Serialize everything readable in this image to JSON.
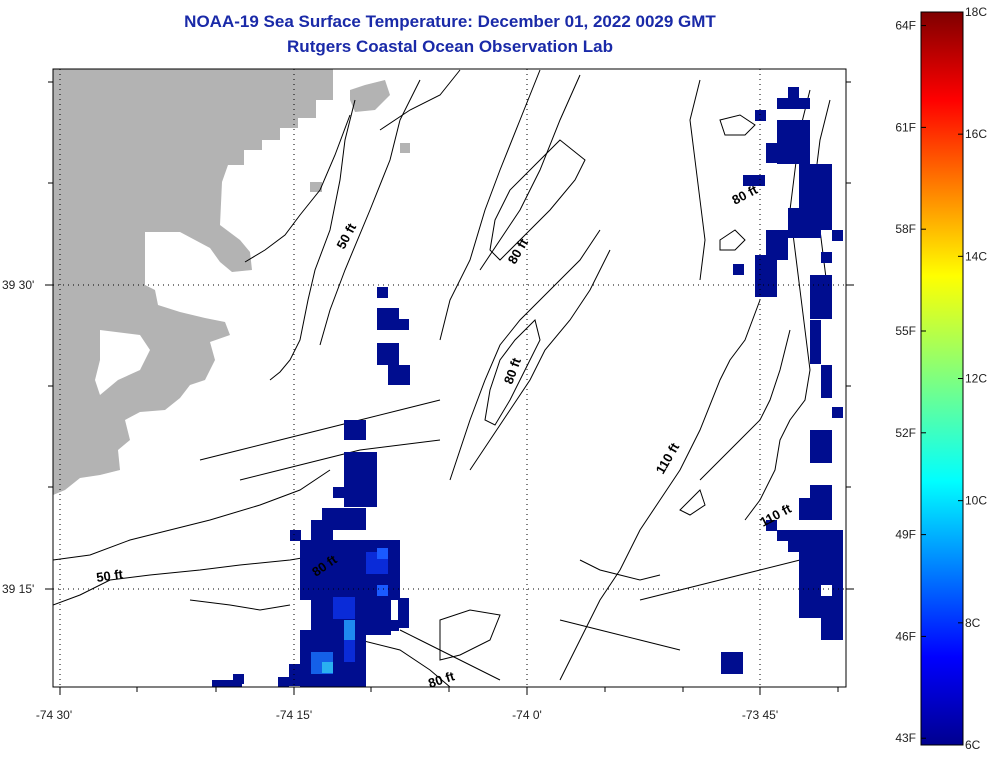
{
  "title": {
    "line1": "NOAA-19 Sea Surface Temperature:  December 01, 2022 0029 GMT",
    "line2": "Rutgers Coastal Ocean Observation Lab"
  },
  "axes": {
    "x_ticks": [
      "-74 30'",
      "-74 15'",
      "-74 0'",
      "-73 45'"
    ],
    "y_ticks": [
      "39 30'",
      "39 15'"
    ]
  },
  "contours": [
    "50 ft",
    "80 ft",
    "110 ft",
    "50 ft",
    "80 ft",
    "80 ft",
    "80 ft",
    "110 ft",
    "50 ft",
    "80 ft"
  ],
  "colorbar": {
    "fahrenheit": [
      "64F",
      "61F",
      "58F",
      "55F",
      "52F",
      "49F",
      "46F",
      "43F"
    ],
    "celsius": [
      "18C",
      "16C",
      "14C",
      "12C",
      "10C",
      "8C",
      "6C"
    ],
    "min_c": 6,
    "max_c": 18
  },
  "colors": {
    "land": "#b3b3b3",
    "title": "#1a2aa8",
    "cold": "#000d8f"
  }
}
